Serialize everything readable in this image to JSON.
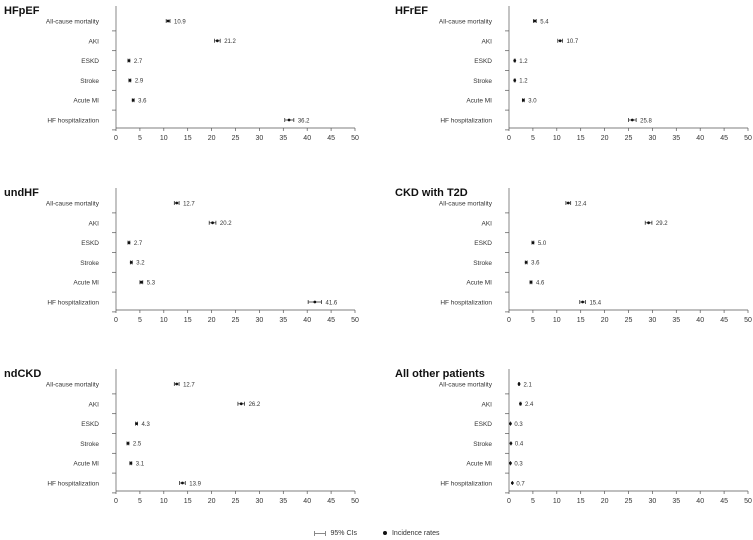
{
  "chart_data": [
    {
      "type": "forest",
      "title": "HFpEF",
      "categories": [
        "All-cause mortality",
        "AKI",
        "ESKD",
        "Stroke",
        "Acute MI",
        "HF hospitalization"
      ],
      "values": [
        10.9,
        21.2,
        2.7,
        2.9,
        3.6,
        36.2
      ],
      "value_labels": [
        "10.9",
        "21.2",
        "2.7",
        "2.9",
        "3.6",
        "36.2"
      ],
      "ci_lower": [
        10.5,
        20.6,
        2.5,
        2.7,
        3.4,
        35.3
      ],
      "ci_upper": [
        11.3,
        21.8,
        2.9,
        3.1,
        3.8,
        37.2
      ],
      "xlim": [
        0,
        50
      ],
      "xticks": [
        0,
        5,
        10,
        15,
        20,
        25,
        30,
        35,
        40,
        45,
        50
      ]
    },
    {
      "type": "forest",
      "title": "HFrEF",
      "categories": [
        "All-cause mortality",
        "AKI",
        "ESKD",
        "Stroke",
        "Acute MI",
        "HF hospitalization"
      ],
      "values": [
        5.4,
        10.7,
        1.2,
        1.2,
        3.0,
        25.8
      ],
      "value_labels": [
        "5.4",
        "10.7",
        "1.2",
        "1.2",
        "3.0",
        "25.8"
      ],
      "ci_lower": [
        5.1,
        10.2,
        1.1,
        1.1,
        2.8,
        25.0
      ],
      "ci_upper": [
        5.7,
        11.2,
        1.3,
        1.3,
        3.2,
        26.6
      ],
      "xlim": [
        0,
        50
      ],
      "xticks": [
        0,
        5,
        10,
        15,
        20,
        25,
        30,
        35,
        40,
        45,
        50
      ]
    },
    {
      "type": "forest",
      "title": "undHF",
      "categories": [
        "All-cause mortality",
        "AKI",
        "ESKD",
        "Stroke",
        "Acute MI",
        "HF hospitalization"
      ],
      "values": [
        12.7,
        20.2,
        2.7,
        3.2,
        5.3,
        41.6
      ],
      "value_labels": [
        "12.7",
        "20.2",
        "2.7",
        "3.2",
        "5.3",
        "41.6"
      ],
      "ci_lower": [
        12.2,
        19.5,
        2.5,
        3.0,
        5.0,
        40.2
      ],
      "ci_upper": [
        13.2,
        20.9,
        2.9,
        3.4,
        5.6,
        43.0
      ],
      "xlim": [
        0,
        50
      ],
      "xticks": [
        0,
        5,
        10,
        15,
        20,
        25,
        30,
        35,
        40,
        45,
        50
      ]
    },
    {
      "type": "forest",
      "title": "CKD with T2D",
      "categories": [
        "All-cause mortality",
        "AKI",
        "ESKD",
        "Stroke",
        "Acute MI",
        "HF hospitalization"
      ],
      "values": [
        12.4,
        29.2,
        5.0,
        3.6,
        4.6,
        15.4
      ],
      "value_labels": [
        "12.4",
        "29.2",
        "5.0",
        "3.6",
        "4.6",
        "15.4"
      ],
      "ci_lower": [
        11.9,
        28.5,
        4.8,
        3.4,
        4.4,
        14.8
      ],
      "ci_upper": [
        12.9,
        29.9,
        5.2,
        3.8,
        4.8,
        16.0
      ],
      "xlim": [
        0,
        50
      ],
      "xticks": [
        0,
        5,
        10,
        15,
        20,
        25,
        30,
        35,
        40,
        45,
        50
      ]
    },
    {
      "type": "forest",
      "title": "ndCKD",
      "categories": [
        "All-cause mortality",
        "AKI",
        "ESKD",
        "Stroke",
        "Acute MI",
        "HF hospitalization"
      ],
      "values": [
        12.7,
        26.2,
        4.3,
        2.5,
        3.1,
        13.9
      ],
      "value_labels": [
        "12.7",
        "26.2",
        "4.3",
        "2.5",
        "3.1",
        "13.9"
      ],
      "ci_lower": [
        12.2,
        25.5,
        4.1,
        2.3,
        2.9,
        13.3
      ],
      "ci_upper": [
        13.2,
        26.9,
        4.5,
        2.7,
        3.3,
        14.5
      ],
      "xlim": [
        0,
        50
      ],
      "xticks": [
        0,
        5,
        10,
        15,
        20,
        25,
        30,
        35,
        40,
        45,
        50
      ]
    },
    {
      "type": "forest",
      "title": "All other patients",
      "categories": [
        "All-cause mortality",
        "AKI",
        "ESKD",
        "Stroke",
        "Acute MI",
        "HF hospitalization"
      ],
      "values": [
        2.1,
        2.4,
        0.3,
        0.4,
        0.3,
        0.7
      ],
      "value_labels": [
        "2.1",
        "2.4",
        "0.3",
        "0.4",
        "0.3",
        "0.7"
      ],
      "ci_lower": [
        2.0,
        2.3,
        0.3,
        0.4,
        0.3,
        0.7
      ],
      "ci_upper": [
        2.2,
        2.5,
        0.3,
        0.4,
        0.3,
        0.7
      ],
      "xlim": [
        0,
        50
      ],
      "xticks": [
        0,
        5,
        10,
        15,
        20,
        25,
        30,
        35,
        40,
        45,
        50
      ]
    }
  ],
  "legend": {
    "ci_label": "95% CIs",
    "point_label": "Incidence rates"
  }
}
